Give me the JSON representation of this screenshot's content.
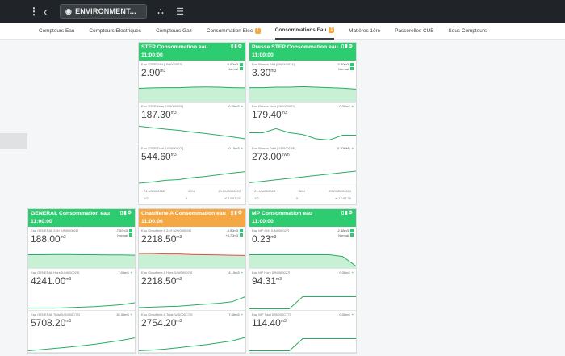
{
  "topbar": {
    "location_label": "ENVIRONMENT..."
  },
  "tabs": [
    {
      "label": "Compteurs Eau",
      "badge": ""
    },
    {
      "label": "Compteurs Electriques",
      "badge": ""
    },
    {
      "label": "Compteurs Gaz",
      "badge": ""
    },
    {
      "label": "Consommation Elec",
      "badge": "1"
    },
    {
      "label": "Consommations Eau",
      "badge": "1"
    },
    {
      "label": "Matières 1ère",
      "badge": ""
    },
    {
      "label": "Passerelles CUB",
      "badge": ""
    },
    {
      "label": "Sous Compteurs",
      "badge": ""
    }
  ],
  "colors": {
    "green": "#2ecc71",
    "orange": "#f4a742",
    "line": "#27ae60",
    "fill": "#c8f0d4",
    "red": "#e74c3c"
  },
  "cards": [
    {
      "title": "STEP Consommation eau",
      "time": "11:00:00",
      "header_color": "green",
      "rows": [
        {
          "label": "Eau STEP 24H [UNI000022]",
          "value": "2.90",
          "unit": "m3",
          "delta": "0.00m3",
          "status": "Normal",
          "mark": "dot",
          "trend": [
            0.55,
            0.57,
            0.58,
            0.58,
            0.6,
            0.61,
            0.6,
            0.58,
            0.57
          ]
        },
        {
          "label": "Eau STEP Hors [UNI000025]",
          "value": "187.30",
          "unit": "m3",
          "delta": "-0.60m3",
          "status": "",
          "mark": "plus",
          "trend": [
            0.72,
            0.66,
            0.6,
            0.55,
            0.48,
            0.42,
            0.35,
            0.28,
            0.2
          ]
        },
        {
          "label": "Eau STEP Total [USI000C71]",
          "value": "544.60",
          "unit": "m3",
          "delta": "0.10m3",
          "status": "",
          "mark": "plus",
          "trend": [
            0.1,
            0.15,
            0.22,
            0.25,
            0.33,
            0.38,
            0.45,
            0.52,
            0.58
          ]
        }
      ],
      "footer": {
        "left_code": "Z1.UNI000022",
        "mid": "86%",
        "right_code": "Z1.CUB000023",
        "bottom_left": "1/2",
        "bottom_mid": "3",
        "bottom_right": "12:07:22"
      }
    },
    {
      "title": "Presse STEP Consommation eau",
      "time": "11:00:00",
      "header_color": "green",
      "rows": [
        {
          "label": "Eau Presse 24H [UNI000024]",
          "value": "3.30",
          "unit": "m3",
          "delta": "-0.30m3",
          "status": "Normal",
          "mark": "dot",
          "trend": [
            0.58,
            0.58,
            0.6,
            0.6,
            0.62,
            0.6,
            0.58,
            0.56,
            0.52
          ]
        },
        {
          "label": "Eau Presse Hors [UNI000024]",
          "value": "179.40",
          "unit": "m3",
          "delta": "0.00m3",
          "status": "",
          "mark": "plus",
          "trend": [
            0.45,
            0.45,
            0.62,
            0.45,
            0.38,
            0.2,
            0.15,
            0.35,
            0.35
          ]
        },
        {
          "label": "Eau Presse Total [USI000C6F]",
          "value": "273.00",
          "unit": "kWh",
          "delta": "0.20kWh",
          "status": "",
          "mark": "plus",
          "trend": [
            0.12,
            0.18,
            0.24,
            0.3,
            0.36,
            0.42,
            0.48,
            0.54,
            0.6
          ]
        }
      ],
      "footer": {
        "left_code": "Z1.UNI000024",
        "mid": "86%",
        "right_code": "Z1.CUB000023",
        "bottom_left": "1/2",
        "bottom_mid": "3",
        "bottom_right": "12:07:22"
      }
    },
    {
      "title": "GENERAL Consommation eau",
      "time": "11:00:00",
      "header_color": "green",
      "rows": [
        {
          "label": "Eau GENERAL 24H [UNI000025]",
          "value": "188.00",
          "unit": "m3",
          "delta": "-7.00m3",
          "status": "Normal",
          "mark": "dot",
          "trend": [
            0.55,
            0.55,
            0.56,
            0.56,
            0.55,
            0.55,
            0.54,
            0.54,
            0.53
          ]
        },
        {
          "label": "Eau GENERAL Hors [UNI000025]",
          "value": "4241.00",
          "unit": "m3",
          "delta": "7.00m3",
          "status": "",
          "mark": "plus",
          "trend": [
            0.08,
            0.08,
            0.08,
            0.1,
            0.12,
            0.14,
            0.18,
            0.22,
            0.3
          ]
        },
        {
          "label": "Eau GENERAL Total [USI000C73]",
          "value": "5708.20",
          "unit": "m3",
          "delta": "15.30m3",
          "status": "",
          "mark": "plus",
          "trend": [
            0.05,
            0.1,
            0.15,
            0.2,
            0.26,
            0.32,
            0.4,
            0.48,
            0.58
          ]
        }
      ]
    },
    {
      "title": "Chaufferie A Consommation eau",
      "time": "11:00:00",
      "header_color": "orange",
      "rows": [
        {
          "label": "Eau Chaufferie A 24H [UNI000026]",
          "value": "2218.50",
          "unit": "m3",
          "delta": "-4.50m3",
          "status": "+8.70m3",
          "mark": "dot",
          "trend": [
            0.6,
            0.6,
            0.58,
            0.58,
            0.56,
            0.55,
            0.54,
            0.53,
            0.52
          ]
        },
        {
          "label": "Eau Chaufferie A Hors [UNI000026]",
          "value": "2218.50",
          "unit": "m3",
          "delta": "4.10m3",
          "status": "",
          "mark": "plus",
          "trend": [
            0.1,
            0.12,
            0.14,
            0.16,
            0.2,
            0.24,
            0.28,
            0.34,
            0.55
          ]
        },
        {
          "label": "Eau Chaufferie A Total [USI000C70]",
          "value": "2754.20",
          "unit": "m3",
          "delta": "7.60m3",
          "status": "",
          "mark": "plus",
          "trend": [
            0.05,
            0.08,
            0.12,
            0.18,
            0.24,
            0.3,
            0.38,
            0.46,
            0.6
          ]
        }
      ]
    },
    {
      "title": "MP Consommation eau",
      "time": "11:00:00",
      "header_color": "green",
      "rows": [
        {
          "label": "Eau MP 24H [UNI000027]",
          "value": "0.23",
          "unit": "m3",
          "delta": "-2.88m3",
          "status": "Normal",
          "mark": "dot",
          "trend": [
            0.55,
            0.55,
            0.55,
            0.55,
            0.55,
            0.55,
            0.55,
            0.48,
            0.08
          ]
        },
        {
          "label": "Eau MP Hors [UNI000027]",
          "value": "94.31",
          "unit": "m3",
          "delta": "0.00m3",
          "status": "",
          "mark": "plus",
          "trend": [
            0.05,
            0.05,
            0.05,
            0.05,
            0.55,
            0.55,
            0.55,
            0.55,
            0.55
          ]
        },
        {
          "label": "Eau MP Total [USI000C77]",
          "value": "114.40",
          "unit": "m3",
          "delta": "0.00m3",
          "status": "",
          "mark": "plus",
          "trend": [
            0.05,
            0.05,
            0.05,
            0.05,
            0.55,
            0.55,
            0.55,
            0.55,
            0.55
          ]
        }
      ]
    }
  ]
}
